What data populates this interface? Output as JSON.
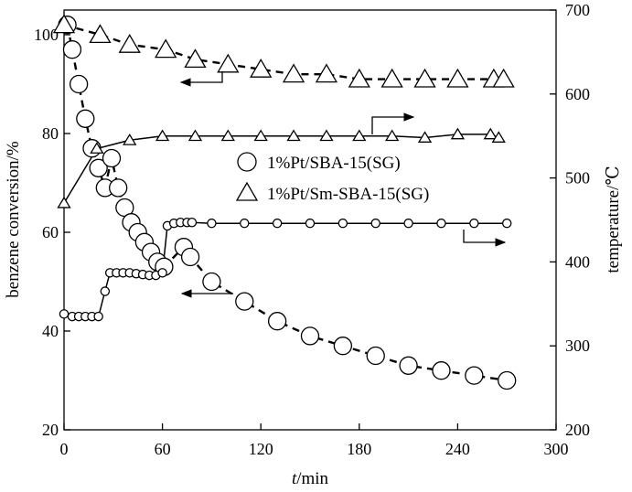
{
  "chart_data": {
    "type": "line",
    "title": "",
    "xlabel_italic": "t",
    "xlabel_rest": "/min",
    "ylabel_left": "benzene conversion/%",
    "ylabel_right": "temperature/℃",
    "xlim": [
      0,
      300
    ],
    "ylim_left": [
      20,
      105
    ],
    "ylim_right": [
      200,
      700
    ],
    "x_ticks": [
      0,
      60,
      120,
      180,
      240,
      300
    ],
    "y_left_ticks": [
      20,
      40,
      60,
      80,
      100
    ],
    "y_right_ticks": [
      200,
      300,
      400,
      500,
      600,
      700
    ],
    "legend": [
      {
        "name": "1%Pt/SBA-15(SG)",
        "marker": "circle"
      },
      {
        "name": "1%Pt/Sm-SBA-15(SG)",
        "marker": "triangle"
      }
    ],
    "series": [
      {
        "name": "1%Pt/SBA-15(SG) conversion",
        "marker": "circle",
        "axis": "left",
        "line": "dashed",
        "x": [
          2,
          5,
          9,
          13,
          17,
          21,
          25,
          29,
          33,
          37,
          41,
          45,
          49,
          53,
          57,
          61,
          73,
          77,
          90,
          110,
          130,
          150,
          170,
          190,
          210,
          230,
          250,
          270
        ],
        "y": [
          102,
          97,
          90,
          83,
          77,
          73,
          69,
          75,
          69,
          65,
          62,
          60,
          58,
          56,
          54,
          53,
          57,
          55,
          50,
          46,
          42,
          39,
          37,
          35,
          33,
          32,
          31,
          30
        ]
      },
      {
        "name": "1%Pt/Sm-SBA-15(SG) conversion",
        "marker": "triangle",
        "axis": "left",
        "line": "dashed",
        "x": [
          0,
          22,
          40,
          62,
          80,
          100,
          120,
          140,
          160,
          180,
          200,
          220,
          240,
          262,
          268
        ],
        "y": [
          102,
          100,
          98,
          97,
          95,
          94,
          93,
          92,
          92,
          91,
          91,
          91,
          91,
          91,
          91
        ]
      },
      {
        "name": "1%Pt/SBA-15(SG) temperature",
        "marker": "small-circle",
        "axis": "right",
        "line": "solid",
        "x": [
          0,
          5,
          9,
          13,
          17,
          21,
          25,
          28,
          32,
          36,
          40,
          44,
          48,
          52,
          56,
          60,
          63,
          67,
          71,
          75,
          78,
          90,
          110,
          130,
          150,
          170,
          190,
          210,
          230,
          250,
          270
        ],
        "y": [
          338,
          335,
          335,
          335,
          335,
          335,
          365,
          387,
          387,
          387,
          387,
          386,
          385,
          384,
          384,
          387,
          443,
          446,
          447,
          447,
          447,
          446,
          446,
          446,
          446,
          446,
          446,
          446,
          446,
          446,
          446
        ]
      },
      {
        "name": "1%Pt/Sm-SBA-15(SG) temperature",
        "marker": "small-triangle",
        "axis": "right",
        "line": "solid",
        "x": [
          0,
          20,
          40,
          60,
          80,
          100,
          120,
          140,
          160,
          180,
          200,
          220,
          240,
          260,
          265
        ],
        "y": [
          470,
          535,
          545,
          550,
          550,
          550,
          550,
          550,
          550,
          550,
          550,
          548,
          552,
          552,
          548
        ]
      }
    ],
    "annotations": [
      {
        "kind": "arrow-left",
        "points_to": "left axis",
        "series": "1%Pt/Sm-SBA-15(SG) conversion"
      },
      {
        "kind": "arrow-right",
        "points_to": "right axis",
        "series": "1%Pt/Sm-SBA-15(SG) temperature"
      },
      {
        "kind": "arrow-left",
        "points_to": "left axis",
        "series": "1%Pt/SBA-15(SG) conversion"
      },
      {
        "kind": "arrow-right",
        "points_to": "right axis",
        "series": "1%Pt/SBA-15(SG) temperature"
      }
    ]
  }
}
